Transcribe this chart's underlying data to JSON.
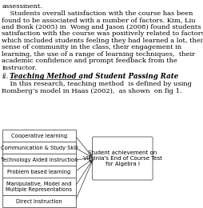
{
  "bg_color": "#ffffff",
  "text_color": "#000000",
  "box_edge_color": "#555555",
  "box_face_color": "#ffffff",
  "arrow_color": "#333333",
  "top_text_lines": [
    "assessment.",
    "    Students overall satisfaction with the course has been",
    "found to be associated with a number of factors. Kim, Liu",
    "and Bonk (2005) in  Wong and Jason (2008) found students",
    "satisfaction with the course was positively related to factors",
    "which included students feeling they had learned a lot, their",
    "sense of community in the class, their engagement in",
    "learning, the use of a range of learning techniques,  their",
    "academic confidence and prompt feedback from the",
    "instructor."
  ],
  "section_label": "ii.",
  "section_title": "Teaching Method and Student Passing Rate",
  "body_text_lines": [
    "    In this research, teaching method  is defined by using",
    "Romberg’s model in Haas (2002),  as shown  on fig 1."
  ],
  "left_boxes": [
    "Cooperative learning",
    "Communication & Study Skill",
    "Technology Aided Instruction",
    "Problem based learning",
    "Manipulative, Model and\nMultiple Representations",
    "Direct Instruction"
  ],
  "right_box": "Student achievement on\nVirginia's End of Course Test\nfor Algebra I",
  "font_size_text": 6.0,
  "font_size_section": 6.2,
  "font_size_box": 4.8,
  "font_size_right_box": 5.0
}
